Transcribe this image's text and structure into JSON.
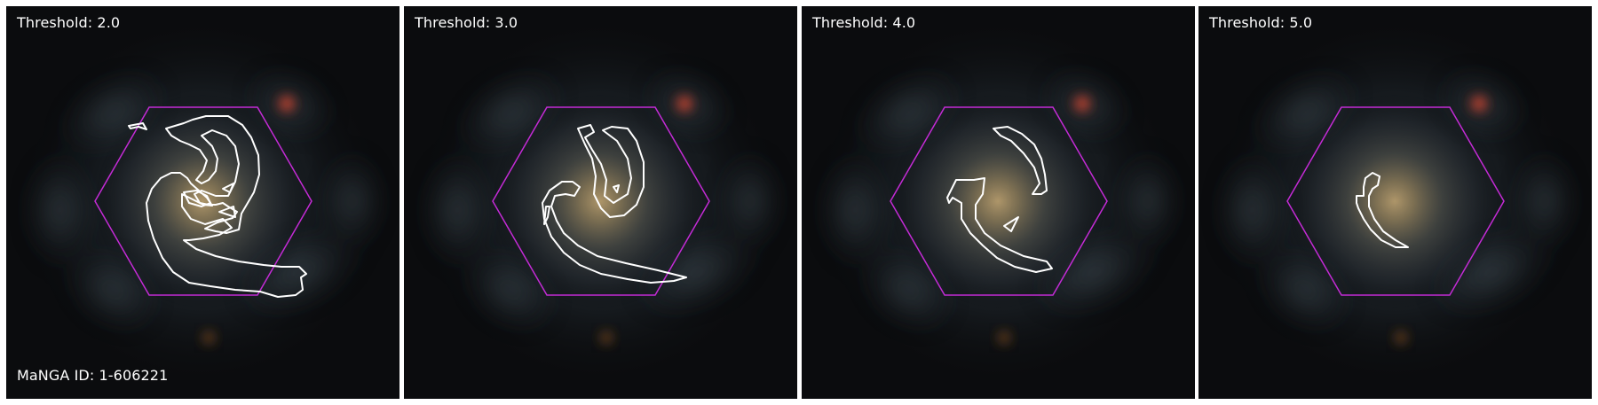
{
  "figure": {
    "galaxy_id_label": "MaNGA ID: 1-606221",
    "contour_color": "#ffffff",
    "ifu_hexagon_color": "#c42bd6",
    "label_color": "#ffffff"
  },
  "panels": [
    {
      "threshold_label": "Threshold: 2.0"
    },
    {
      "threshold_label": "Threshold: 3.0"
    },
    {
      "threshold_label": "Threshold: 4.0"
    },
    {
      "threshold_label": "Threshold: 5.0"
    }
  ]
}
